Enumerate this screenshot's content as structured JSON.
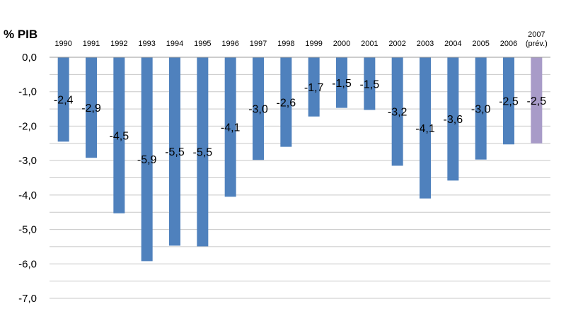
{
  "chart_data": {
    "type": "bar",
    "ylabel": "% PIB",
    "categories": [
      [
        "1990"
      ],
      [
        "1991"
      ],
      [
        "1992"
      ],
      [
        "1993"
      ],
      [
        "1994"
      ],
      [
        "1995"
      ],
      [
        "1996"
      ],
      [
        "1997"
      ],
      [
        "1998"
      ],
      [
        "1999"
      ],
      [
        "2000"
      ],
      [
        "2001"
      ],
      [
        "2002"
      ],
      [
        "2003"
      ],
      [
        "2004"
      ],
      [
        "2005"
      ],
      [
        "2006"
      ],
      [
        "2007",
        "(prév.)"
      ]
    ],
    "values": [
      -2.45,
      -2.92,
      -4.53,
      -5.92,
      -5.47,
      -5.49,
      -4.05,
      -2.98,
      -2.6,
      -1.72,
      -1.47,
      -1.53,
      -3.15,
      -4.1,
      -3.58,
      -2.97,
      -2.53,
      -2.5
    ],
    "data_labels": [
      "-2,4",
      "-2,9",
      "-4,5",
      "-5,9",
      "-5,5",
      "-5,5",
      "-4,1",
      "-3,0",
      "-2,6",
      "-1,7",
      "-1,5",
      "-1,5",
      "-3,2",
      "-4,1",
      "-3,6",
      "-3,0",
      "-2,5",
      "-2,5"
    ],
    "ylim": [
      -7,
      0
    ],
    "yticks": [
      0,
      -1,
      -2,
      -3,
      -4,
      -5,
      -6,
      -7
    ],
    "ytick_labels": [
      "0,0",
      "-1,0",
      "-2,0",
      "-3,0",
      "-4,0",
      "-5,0",
      "-6,0",
      "-7,0"
    ],
    "x_axis_position": "top",
    "grid": "horizontal",
    "legend": "none",
    "colors": {
      "bar": "#4f81bd",
      "forecast_bar": "#a89bc8",
      "grid": "#c8c8c8"
    },
    "highlight_index": 17
  }
}
